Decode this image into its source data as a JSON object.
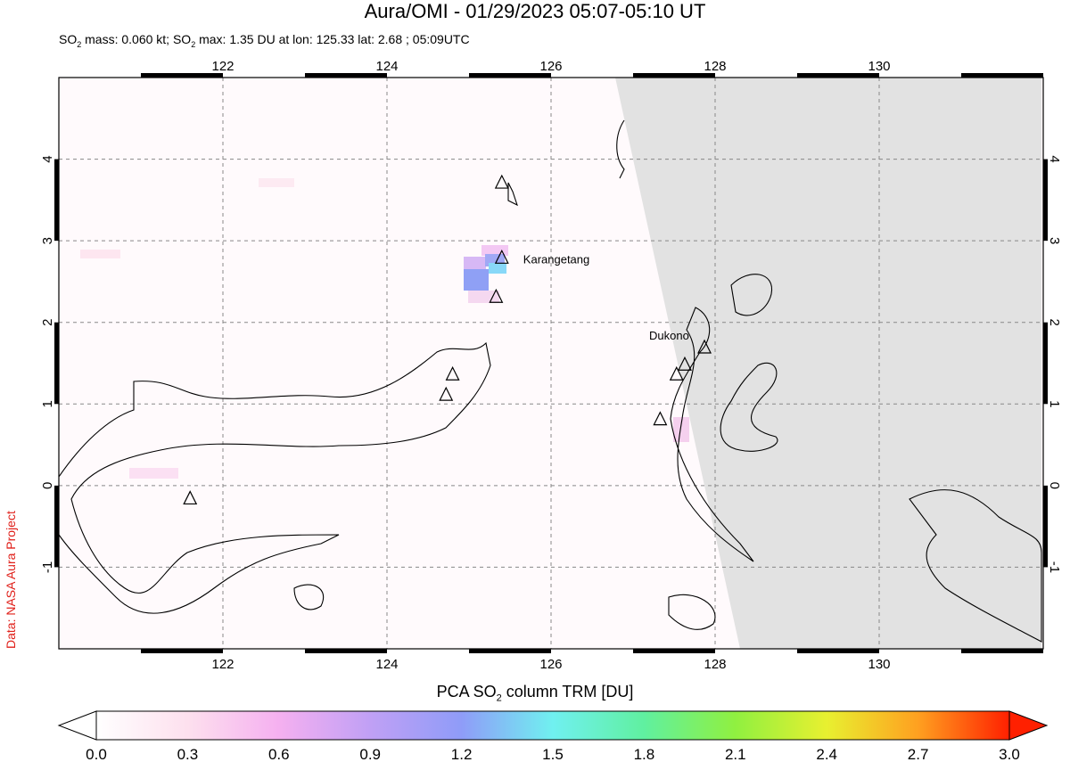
{
  "title": "Aura/OMI - 01/29/2023 05:07-05:10 UT",
  "subtitle_parts": {
    "a": "SO",
    "b": "2",
    "c": " mass: 0.060 kt; SO",
    "d": "2",
    "e": " max: 1.35 DU at lon: 125.33 lat: 2.68 ; 05:09UTC"
  },
  "credit": "Data: NASA Aura Project",
  "map": {
    "lon_range": [
      120,
      132
    ],
    "lat_range": [
      -2,
      5
    ],
    "lon_ticks": [
      "122",
      "124",
      "126",
      "128",
      "130"
    ],
    "lat_ticks": [
      "4",
      "3",
      "2",
      "1",
      "0",
      "-1"
    ],
    "no_data_color": "#e2e2e2",
    "grid": true
  },
  "volcanoes": [
    {
      "name": "Karangetang",
      "lon": 125.4,
      "lat": 2.78,
      "label": "Karangetang"
    },
    {
      "name": "Dukono",
      "lon": 127.87,
      "lat": 1.68,
      "label": "Dukono"
    },
    {
      "lon": 125.4,
      "lat": 3.7
    },
    {
      "lon": 125.33,
      "lat": 2.3
    },
    {
      "lon": 124.8,
      "lat": 1.35
    },
    {
      "lon": 124.72,
      "lat": 1.1
    },
    {
      "lon": 127.63,
      "lat": 1.47
    },
    {
      "lon": 127.53,
      "lat": 1.35
    },
    {
      "lon": 127.33,
      "lat": 0.8
    },
    {
      "lon": 121.6,
      "lat": -0.17
    }
  ],
  "colorbar": {
    "title": "PCA SO2 column TRM [DU]",
    "title_parts": {
      "a": "PCA SO",
      "b": "2",
      "c": " column TRM [DU]"
    },
    "min": 0.0,
    "max": 3.0,
    "ticks": [
      "0.0",
      "0.3",
      "0.6",
      "0.9",
      "1.2",
      "1.5",
      "1.8",
      "2.1",
      "2.4",
      "2.7",
      "3.0"
    ],
    "colors": [
      "#ffffff",
      "#fde0ee",
      "#f5b0f0",
      "#c0a0f5",
      "#8f9cf8",
      "#70f0f0",
      "#60f0a0",
      "#90f040",
      "#e8f030",
      "#ffa020",
      "#ff2000"
    ]
  }
}
